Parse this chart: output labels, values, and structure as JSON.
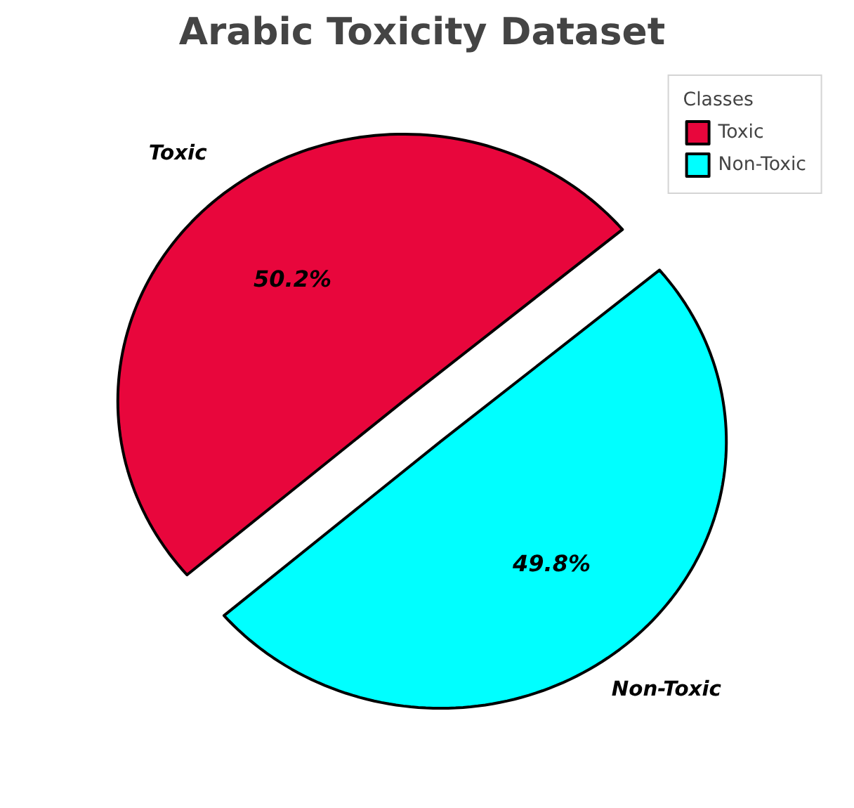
{
  "chart_data": {
    "type": "pie",
    "title": "Arabic Toxicity Dataset",
    "legend_title": "Classes",
    "categories": [
      "Toxic",
      "Non-Toxic"
    ],
    "values": [
      50.2,
      49.8
    ],
    "colors": [
      "#e8063c",
      "#00ffff"
    ],
    "value_labels": [
      "50.2%",
      "49.8%"
    ],
    "legend": "top right"
  }
}
